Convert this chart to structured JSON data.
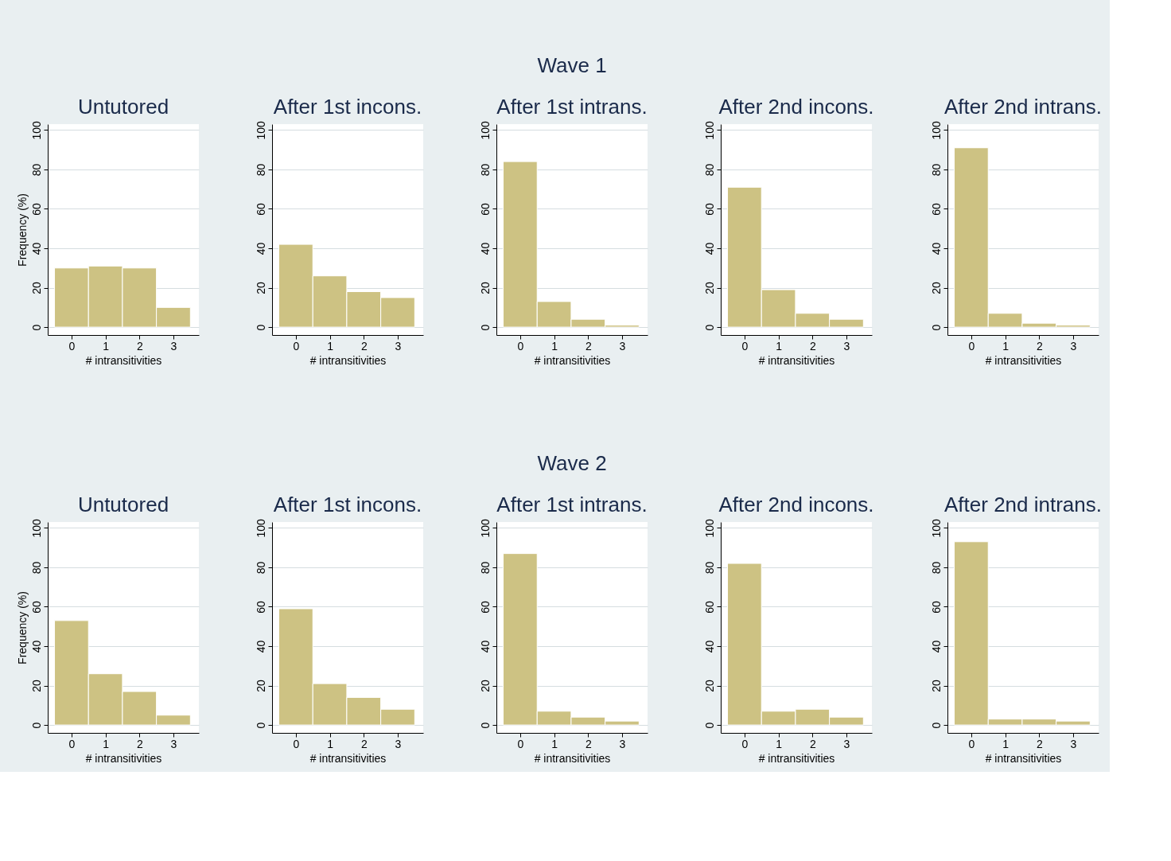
{
  "chart_data": [
    {
      "type": "histogram",
      "title": "Untutored",
      "xlabel": "# intransitivities",
      "ylabel": "Frequency (%)",
      "bins": [
        -0.5,
        0.5,
        1.5,
        2.5,
        3.5
      ],
      "values": [
        30,
        31,
        30,
        10
      ],
      "color": "#cdc283",
      "xlim": [
        -0.7,
        3.75
      ],
      "xticks": [
        0,
        1,
        2,
        3
      ],
      "ylim": [
        -4,
        103
      ],
      "yticks": [
        0,
        20,
        40,
        60,
        80,
        100
      ],
      "grid": "y"
    },
    {
      "type": "histogram",
      "title": "After 1st incons.",
      "xlabel": "# intransitivities",
      "bins": [
        -0.5,
        0.5,
        1.5,
        2.5,
        3.5
      ],
      "values": [
        42,
        26,
        18,
        15
      ],
      "color": "#cdc283",
      "xlim": [
        -0.7,
        3.75
      ],
      "xticks": [
        0,
        1,
        2,
        3
      ],
      "ylim": [
        -4,
        103
      ],
      "yticks": [
        0,
        20,
        40,
        60,
        80,
        100
      ],
      "grid": "y"
    },
    {
      "type": "histogram",
      "title": "After 1st intrans.",
      "annotations": [
        "Wave 1"
      ],
      "xlabel": "# intransitivities",
      "bins": [
        -0.5,
        0.5,
        1.5,
        2.5,
        3.5
      ],
      "values": [
        84,
        13,
        4,
        1
      ],
      "color": "#cdc283",
      "xlim": [
        -0.7,
        3.75
      ],
      "xticks": [
        0,
        1,
        2,
        3
      ],
      "ylim": [
        -4,
        103
      ],
      "yticks": [
        0,
        20,
        40,
        60,
        80,
        100
      ],
      "grid": "y"
    },
    {
      "type": "histogram",
      "title": "After 2nd incons.",
      "xlabel": "# intransitivities",
      "bins": [
        -0.5,
        0.5,
        1.5,
        2.5,
        3.5
      ],
      "values": [
        71,
        19,
        7,
        4
      ],
      "color": "#cdc283",
      "xlim": [
        -0.7,
        3.75
      ],
      "xticks": [
        0,
        1,
        2,
        3
      ],
      "ylim": [
        -4,
        103
      ],
      "yticks": [
        0,
        20,
        40,
        60,
        80,
        100
      ],
      "grid": "y"
    },
    {
      "type": "histogram",
      "title": "After 2nd intrans.",
      "xlabel": "# intransitivities",
      "bins": [
        -0.5,
        0.5,
        1.5,
        2.5,
        3.5
      ],
      "values": [
        91,
        7,
        2,
        1
      ],
      "color": "#cdc283",
      "xlim": [
        -0.7,
        3.75
      ],
      "xticks": [
        0,
        1,
        2,
        3
      ],
      "ylim": [
        -4,
        103
      ],
      "yticks": [
        0,
        20,
        40,
        60,
        80,
        100
      ],
      "grid": "y"
    },
    {
      "type": "histogram",
      "title": "Untutored",
      "xlabel": "# intransitivities",
      "ylabel": "Frequency (%)",
      "bins": [
        -0.5,
        0.5,
        1.5,
        2.5,
        3.5
      ],
      "values": [
        53,
        26,
        17,
        5
      ],
      "color": "#cdc283",
      "xlim": [
        -0.7,
        3.75
      ],
      "xticks": [
        0,
        1,
        2,
        3
      ],
      "ylim": [
        -4,
        103
      ],
      "yticks": [
        0,
        20,
        40,
        60,
        80,
        100
      ],
      "grid": "y"
    },
    {
      "type": "histogram",
      "title": "After 1st incons.",
      "xlabel": "# intransitivities",
      "bins": [
        -0.5,
        0.5,
        1.5,
        2.5,
        3.5
      ],
      "values": [
        59,
        21,
        14,
        8
      ],
      "color": "#cdc283",
      "xlim": [
        -0.7,
        3.75
      ],
      "xticks": [
        0,
        1,
        2,
        3
      ],
      "ylim": [
        -4,
        103
      ],
      "yticks": [
        0,
        20,
        40,
        60,
        80,
        100
      ],
      "grid": "y"
    },
    {
      "type": "histogram",
      "title": "After 1st intrans.",
      "annotations": [
        "Wave 2"
      ],
      "xlabel": "# intransitivities",
      "bins": [
        -0.5,
        0.5,
        1.5,
        2.5,
        3.5
      ],
      "values": [
        87,
        7,
        4,
        2
      ],
      "color": "#cdc283",
      "xlim": [
        -0.7,
        3.75
      ],
      "xticks": [
        0,
        1,
        2,
        3
      ],
      "ylim": [
        -4,
        103
      ],
      "yticks": [
        0,
        20,
        40,
        60,
        80,
        100
      ],
      "grid": "y"
    },
    {
      "type": "histogram",
      "title": "After 2nd incons.",
      "xlabel": "# intransitivities",
      "bins": [
        -0.5,
        0.5,
        1.5,
        2.5,
        3.5
      ],
      "values": [
        82,
        7,
        8,
        4
      ],
      "color": "#cdc283",
      "xlim": [
        -0.7,
        3.75
      ],
      "xticks": [
        0,
        1,
        2,
        3
      ],
      "ylim": [
        -4,
        103
      ],
      "yticks": [
        0,
        20,
        40,
        60,
        80,
        100
      ],
      "grid": "y"
    },
    {
      "type": "histogram",
      "title": "After 2nd intrans.",
      "xlabel": "# intransitivities",
      "bins": [
        -0.5,
        0.5,
        1.5,
        2.5,
        3.5
      ],
      "values": [
        93,
        3,
        3,
        2
      ],
      "color": "#cdc283",
      "xlim": [
        -0.7,
        3.75
      ],
      "xticks": [
        0,
        1,
        2,
        3
      ],
      "ylim": [
        -4,
        103
      ],
      "yticks": [
        0,
        20,
        40,
        60,
        80,
        100
      ],
      "grid": "y"
    }
  ]
}
